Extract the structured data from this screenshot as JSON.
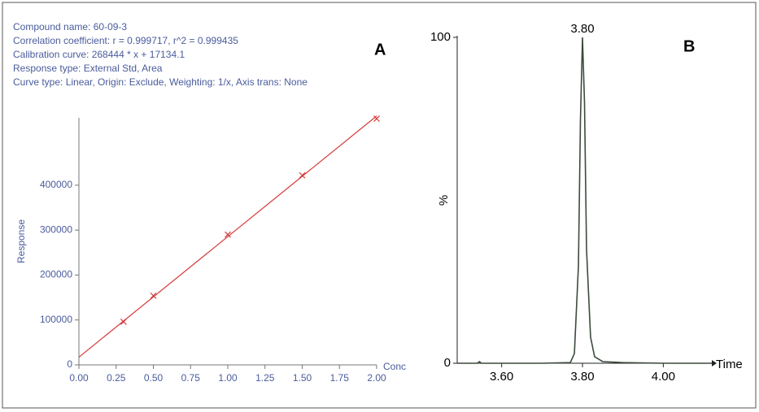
{
  "chart_data": [
    {
      "type": "scatter",
      "panel_label": "A",
      "info": [
        "Compound name: 60-09-3",
        "Correlation coefficient: r = 0.999717, r^2 = 0.999435",
        "Calibration curve: 268444 * x + 17134.1",
        "Response type: External Std, Area",
        "Curve type: Linear, Origin: Exclude, Weighting: 1/x, Axis trans: None"
      ],
      "ylabel": "Response",
      "xlabel": "Conc",
      "xlim": [
        0,
        2
      ],
      "ylim": [
        0,
        550000
      ],
      "xticks": [
        {
          "value": 0,
          "label": "0.00"
        },
        {
          "value": 0.25,
          "label": "0.25"
        },
        {
          "value": 0.5,
          "label": "0.50"
        },
        {
          "value": 0.75,
          "label": "0.75"
        },
        {
          "value": 1,
          "label": "1.00"
        },
        {
          "value": 1.25,
          "label": "1.25"
        },
        {
          "value": 1.5,
          "label": "1.50"
        },
        {
          "value": 1.75,
          "label": "1.75"
        },
        {
          "value": 2,
          "label": "2.00"
        }
      ],
      "yticks": [
        0,
        100000,
        200000,
        300000,
        400000
      ],
      "series": [
        {
          "mode": "markers",
          "color": "#d63a3a",
          "x": [
            0.3,
            0.5,
            1,
            1.5,
            2
          ],
          "values": [
            96000,
            154000,
            290000,
            422000,
            548000
          ]
        },
        {
          "mode": "line",
          "color": "#d63a3a",
          "x": [
            0,
            2
          ],
          "values": [
            17134,
            554022
          ]
        }
      ]
    },
    {
      "type": "line",
      "panel_label": "B",
      "ylabel": "%",
      "xlabel": "Time",
      "xlim": [
        3.49,
        4.12
      ],
      "ylim": [
        0,
        100
      ],
      "xticks": [
        {
          "value": 3.6,
          "label": "3.60"
        },
        {
          "value": 3.8,
          "label": "3.80"
        },
        {
          "value": 4,
          "label": "4.00"
        }
      ],
      "yticks": [
        0,
        100
      ],
      "annotations": [
        {
          "text": "3.80",
          "x": 3.8,
          "y": 100
        }
      ],
      "series": [
        {
          "mode": "line",
          "color": "#3d4a3d",
          "x": [
            3.49,
            3.54,
            3.545,
            3.55,
            3.7,
            3.77,
            3.78,
            3.79,
            3.795,
            3.8,
            3.805,
            3.81,
            3.82,
            3.83,
            3.85,
            3.9,
            4.0,
            4.12
          ],
          "values": [
            0,
            0,
            0.5,
            0,
            0,
            0.2,
            3,
            30,
            75,
            100,
            80,
            35,
            8,
            2,
            0.5,
            0.2,
            0,
            0
          ]
        }
      ]
    }
  ]
}
